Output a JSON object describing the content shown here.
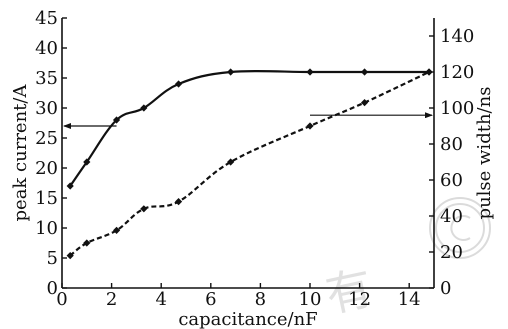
{
  "chart_data": {
    "type": "line",
    "title": "",
    "xlabel": "capacitance/nF",
    "ylabel": "peak current/A",
    "y2label": "pulse width/ns",
    "xlim": [
      0,
      15
    ],
    "ylim": [
      0,
      45
    ],
    "y2lim": [
      0,
      150
    ],
    "x_ticks": [
      0,
      2,
      4,
      6,
      8,
      10,
      12,
      14
    ],
    "y_ticks": [
      0,
      5,
      10,
      15,
      20,
      25,
      30,
      35,
      40,
      45
    ],
    "y2_ticks": [
      0,
      20,
      40,
      60,
      80,
      100,
      120,
      140
    ],
    "grid": false,
    "legend": "none",
    "series": [
      {
        "axis": "left",
        "style": "solid",
        "x": [
          0.33,
          1.0,
          2.2,
          3.3,
          4.7,
          6.8,
          10.0,
          12.2,
          14.8
        ],
        "values": [
          17,
          21,
          28,
          30,
          34,
          36,
          36,
          36,
          36
        ]
      },
      {
        "axis": "right",
        "style": "dashed",
        "x": [
          0.33,
          1.0,
          2.2,
          3.3,
          4.7,
          6.8,
          10.0,
          12.2,
          14.8
        ],
        "values": [
          18,
          25,
          32,
          44,
          48,
          70,
          90,
          103,
          120
        ]
      }
    ],
    "annotations": [
      {
        "kind": "arrow",
        "from_x": 2.2,
        "value": 27,
        "direction": "left",
        "target_axis": "left"
      },
      {
        "kind": "arrow",
        "from_x": 10.0,
        "value": 96,
        "direction": "right",
        "target_axis": "right"
      }
    ]
  },
  "watermark": {
    "text": "有"
  }
}
